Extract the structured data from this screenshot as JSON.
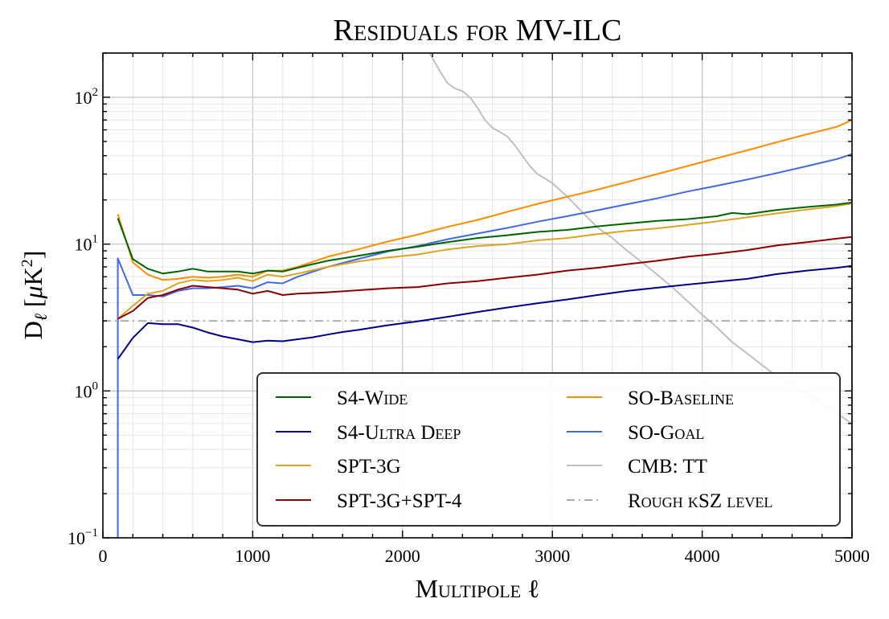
{
  "chart_data": {
    "type": "line",
    "title": "Residuals for MV-ILC",
    "xlabel": "Multipole ℓ",
    "ylabel": "D_ℓ [μK²]",
    "ylabel_parts": {
      "main": "D",
      "sub": "ℓ",
      "unit_open": " [",
      "unit_mu": "μ",
      "unit_k": "K",
      "unit_exp": "2",
      "unit_close": "]"
    },
    "xlim": [
      0,
      5000
    ],
    "ylim": [
      0.1,
      200
    ],
    "yscale": "log",
    "grid": true,
    "legend_position": "lower-right",
    "x_ticks": [
      0,
      1000,
      2000,
      3000,
      4000,
      5000
    ],
    "x_tick_labels": [
      "0",
      "1000",
      "2000",
      "3000",
      "4000",
      "5000"
    ],
    "y_ticks": [
      0.1,
      1,
      10,
      100
    ],
    "y_tick_labels": [
      {
        "base": "10",
        "exp": "−1"
      },
      {
        "base": "10",
        "exp": "0"
      },
      {
        "base": "10",
        "exp": "1"
      },
      {
        "base": "10",
        "exp": "2"
      }
    ],
    "series": [
      {
        "name": "S4-Wide",
        "color": "#006400",
        "style": "solid",
        "x": [
          100,
          200,
          300,
          400,
          500,
          600,
          700,
          800,
          900,
          1000,
          1100,
          1200,
          1300,
          1400,
          1500,
          1700,
          1900,
          2100,
          2300,
          2500,
          2700,
          2900,
          3100,
          3300,
          3500,
          3700,
          3900,
          4100,
          4200,
          4300,
          4500,
          4700,
          4900,
          5000
        ],
        "y": [
          15,
          7.9,
          6.8,
          6.3,
          6.5,
          6.8,
          6.5,
          6.5,
          6.5,
          6.3,
          6.6,
          6.5,
          6.9,
          7.3,
          7.7,
          8.3,
          9.0,
          9.6,
          10.3,
          11.0,
          11.5,
          12.1,
          12.5,
          13.2,
          13.8,
          14.4,
          14.8,
          15.5,
          16.3,
          16.0,
          17.1,
          17.9,
          18.6,
          19.2
        ]
      },
      {
        "name": "S4-Ultra Deep",
        "color": "#00008b",
        "style": "solid",
        "x": [
          100,
          200,
          300,
          400,
          500,
          600,
          700,
          800,
          900,
          1000,
          1100,
          1200,
          1300,
          1400,
          1500,
          1600,
          1700,
          1900,
          2100,
          2300,
          2500,
          2700,
          2900,
          3100,
          3300,
          3500,
          3700,
          3900,
          4100,
          4300,
          4500,
          4700,
          4900,
          5000
        ],
        "y": [
          1.65,
          2.3,
          2.9,
          2.85,
          2.85,
          2.7,
          2.5,
          2.35,
          2.25,
          2.15,
          2.2,
          2.18,
          2.25,
          2.32,
          2.42,
          2.52,
          2.6,
          2.8,
          2.98,
          3.2,
          3.45,
          3.7,
          3.95,
          4.2,
          4.5,
          4.8,
          5.05,
          5.3,
          5.55,
          5.8,
          6.25,
          6.6,
          6.9,
          7.1
        ]
      },
      {
        "name": "SPT-3G",
        "color": "#daa520",
        "style": "solid",
        "x": [
          100,
          200,
          300,
          400,
          500,
          600,
          700,
          800,
          900,
          1000,
          1100,
          1200,
          1300,
          1500,
          1700,
          1900,
          2100,
          2300,
          2500,
          2700,
          2900,
          3100,
          3300,
          3500,
          3700,
          3900,
          4100,
          4300,
          4500,
          4700,
          4900,
          5000
        ],
        "y": [
          3.1,
          3.8,
          4.6,
          4.8,
          5.4,
          5.7,
          5.6,
          5.7,
          5.9,
          5.6,
          6.2,
          6.0,
          6.3,
          7.0,
          7.6,
          8.1,
          8.5,
          9.2,
          9.7,
          10.0,
          10.6,
          11.0,
          11.7,
          12.3,
          12.8,
          13.5,
          14.3,
          15.2,
          16.2,
          17.2,
          18.2,
          18.9
        ]
      },
      {
        "name": "SPT-3G+SPT-4",
        "color": "#8b0000",
        "style": "solid",
        "x": [
          100,
          200,
          300,
          400,
          500,
          600,
          700,
          800,
          900,
          1000,
          1100,
          1200,
          1300,
          1500,
          1700,
          1900,
          2100,
          2300,
          2500,
          2700,
          2900,
          3100,
          3300,
          3500,
          3700,
          3900,
          4100,
          4300,
          4500,
          4700,
          4900,
          5000
        ],
        "y": [
          3.1,
          3.5,
          4.3,
          4.5,
          4.9,
          5.2,
          5.1,
          5.0,
          4.9,
          4.6,
          4.8,
          4.5,
          4.6,
          4.7,
          4.85,
          5.0,
          5.1,
          5.4,
          5.6,
          5.9,
          6.2,
          6.6,
          6.9,
          7.3,
          7.7,
          8.2,
          8.6,
          9.1,
          9.8,
          10.3,
          10.9,
          11.2
        ]
      },
      {
        "name": "SO-Baseline",
        "color": "#ff8c00",
        "style": "solid",
        "x": [
          100,
          200,
          300,
          400,
          500,
          600,
          700,
          800,
          900,
          1000,
          1100,
          1200,
          1300,
          1500,
          1700,
          1900,
          2100,
          2300,
          2500,
          2700,
          2900,
          3100,
          3300,
          3500,
          3700,
          3900,
          4100,
          4300,
          4500,
          4700,
          4900,
          5000
        ],
        "y": [
          16,
          7.5,
          6.2,
          5.7,
          5.8,
          6.0,
          5.9,
          6.0,
          6.2,
          6.0,
          6.6,
          6.6,
          7.0,
          8.2,
          9.2,
          10.4,
          11.6,
          13.1,
          14.6,
          16.6,
          18.8,
          21.0,
          23.5,
          26.5,
          30.0,
          34.0,
          38.5,
          43.5,
          49.5,
          56.0,
          63.0,
          70.0
        ]
      },
      {
        "name": "SO-Goal",
        "color": "#4169e1",
        "style": "solid",
        "x": [
          100,
          200,
          300,
          400,
          500,
          600,
          700,
          800,
          900,
          1000,
          1100,
          1200,
          1300,
          1500,
          1700,
          1900,
          2100,
          2300,
          2500,
          2700,
          2900,
          3100,
          3300,
          3500,
          3700,
          3900,
          4100,
          4300,
          4500,
          4700,
          4900,
          5000
        ],
        "y": [
          8.0,
          4.5,
          4.5,
          4.4,
          4.8,
          5.0,
          5.0,
          5.1,
          5.2,
          5.0,
          5.5,
          5.4,
          6.0,
          7.0,
          7.9,
          8.9,
          9.7,
          10.8,
          11.8,
          12.9,
          14.2,
          15.5,
          17.0,
          18.7,
          20.5,
          22.8,
          25.0,
          27.5,
          30.5,
          34.0,
          38.0,
          41.0
        ]
      },
      {
        "name": "CMB: TT",
        "color": "#c0c0c0",
        "style": "solid",
        "x": [
          2180,
          2250,
          2300,
          2350,
          2400,
          2450,
          2500,
          2550,
          2600,
          2650,
          2700,
          2750,
          2800,
          2850,
          2900,
          2950,
          3000,
          3100,
          3200,
          3300,
          3400,
          3500,
          3600,
          3700,
          3800,
          3900,
          4000,
          4100,
          4200,
          4300,
          4400,
          4500,
          4600,
          4700,
          4800,
          4900,
          5000
        ],
        "y": [
          200,
          150,
          125,
          115,
          110,
          100,
          85,
          70,
          62,
          58,
          54,
          47,
          40,
          34,
          30,
          28,
          26,
          21,
          16.5,
          13,
          11,
          9,
          7.5,
          6.2,
          5.1,
          4.1,
          3.3,
          2.7,
          2.15,
          1.8,
          1.5,
          1.25,
          1.1,
          0.95,
          0.82,
          0.7,
          0.6
        ]
      },
      {
        "name": "Rough kSZ level",
        "color": "#a9a9a9",
        "style": "dashdot",
        "x": [
          0,
          5000
        ],
        "y": [
          3.0,
          3.0
        ]
      }
    ]
  }
}
